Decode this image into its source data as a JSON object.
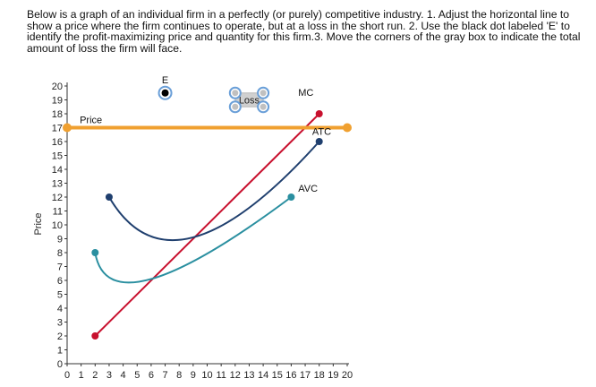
{
  "instructions": "Below is a graph of an individual firm in a perfectly (or purely) competitive industry. 1. Adjust the horizontal line to show a price where the firm continues to operate, but at a loss in the short run. 2. Use the black dot labeled 'E' to identify the profit-maximizing price and quantity for this firm.3.  Move the corners of the gray box to indicate the total amount of loss the firm will face.",
  "chart_data": {
    "type": "line",
    "ylabel": "Price",
    "xlabel": "",
    "xlim": [
      0,
      20
    ],
    "ylim": [
      0,
      20
    ],
    "x_ticks": [
      "0",
      "1",
      "2",
      "3",
      "4",
      "5",
      "6",
      "7",
      "8",
      "9",
      "10",
      "11",
      "12",
      "13",
      "14",
      "15",
      "16",
      "17",
      "18",
      "19",
      "20"
    ],
    "y_ticks": [
      "0",
      "1",
      "2",
      "3",
      "4",
      "5",
      "6",
      "7",
      "8",
      "9",
      "10",
      "11",
      "12",
      "13",
      "14",
      "15",
      "16",
      "17",
      "18",
      "19",
      "20"
    ],
    "series": [
      {
        "name": "MC",
        "color": "#c8102e",
        "shape": "line",
        "points": [
          [
            2,
            2
          ],
          [
            18,
            18
          ]
        ]
      },
      {
        "name": "ATC",
        "color": "#1f3f6e",
        "shape": "quadratic",
        "points": [
          [
            3,
            12
          ],
          [
            9,
            9.1
          ],
          [
            18,
            16
          ]
        ]
      },
      {
        "name": "AVC",
        "color": "#2a8fa0",
        "shape": "quadratic",
        "points": [
          [
            2,
            8
          ],
          [
            6,
            6.1
          ],
          [
            16,
            12
          ]
        ]
      },
      {
        "name": "Price",
        "color": "#f0a030",
        "shape": "horizontal",
        "y": 17,
        "x": [
          0,
          20
        ]
      }
    ],
    "point_E": {
      "label": "E",
      "x": 7,
      "y": 19.5
    },
    "loss_box": {
      "label": "Loss",
      "corners": [
        [
          12,
          19.5
        ],
        [
          14,
          19.5
        ],
        [
          12,
          18.5
        ],
        [
          14,
          18.5
        ]
      ]
    },
    "colors": {
      "mc": "#c8102e",
      "atc": "#1f3f6e",
      "avc": "#2a8fa0",
      "price": "#f0a030",
      "handle": "#6a9fd8",
      "loss_fill": "#d0d0d0"
    }
  }
}
